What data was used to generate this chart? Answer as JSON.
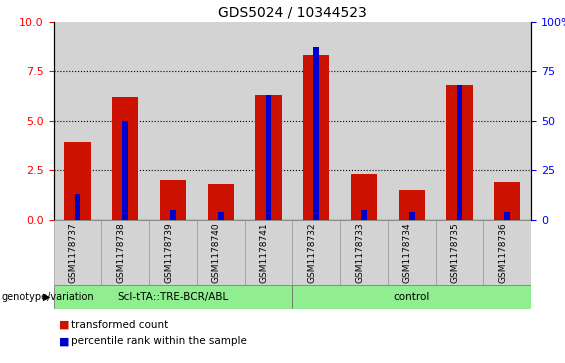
{
  "title": "GDS5024 / 10344523",
  "samples": [
    "GSM1178737",
    "GSM1178738",
    "GSM1178739",
    "GSM1178740",
    "GSM1178741",
    "GSM1178732",
    "GSM1178733",
    "GSM1178734",
    "GSM1178735",
    "GSM1178736"
  ],
  "transformed_count": [
    3.9,
    6.2,
    2.0,
    1.8,
    6.3,
    8.3,
    2.3,
    1.5,
    6.8,
    1.9
  ],
  "percentile_rank": [
    13,
    50,
    5,
    4,
    63,
    87,
    5,
    4,
    68,
    4
  ],
  "group_labels": [
    "Scl-tTA::TRE-BCR/ABL",
    "control"
  ],
  "group_ranges": [
    [
      0,
      5
    ],
    [
      5,
      10
    ]
  ],
  "bar_color_red": "#CC1100",
  "bar_color_blue": "#0000CC",
  "ylim_left": [
    0,
    10
  ],
  "ylim_right": [
    0,
    100
  ],
  "yticks_left": [
    0,
    2.5,
    5.0,
    7.5,
    10
  ],
  "yticks_right": [
    0,
    25,
    50,
    75,
    100
  ],
  "background_color": "#D3D3D3",
  "legend_labels": [
    "transformed count",
    "percentile rank within the sample"
  ],
  "genotype_label": "genotype/variation",
  "group_color": "#90EE90",
  "fig_width": 5.65,
  "fig_height": 3.63
}
